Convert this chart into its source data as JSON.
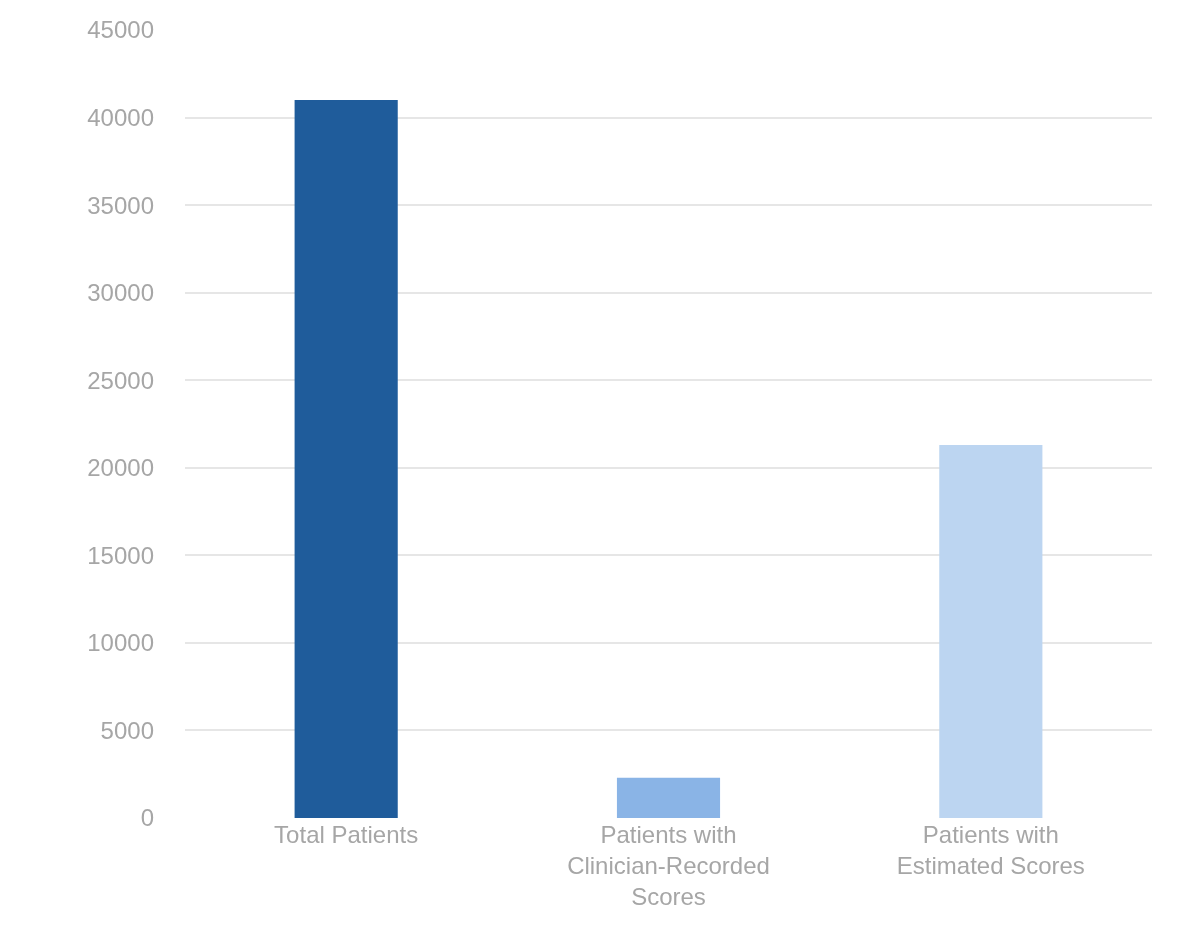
{
  "chart_data": {
    "type": "bar",
    "categories": [
      "Total Patients",
      "Patients with Clinician-Recorded Scores",
      "Patients with Estimated Scores"
    ],
    "values": [
      41000,
      2300,
      21300
    ],
    "colors": [
      "#1f5c9b",
      "#8ab4e6",
      "#bcd5f1"
    ],
    "ylim": [
      0,
      45000
    ],
    "yticks": [
      0,
      5000,
      10000,
      15000,
      20000,
      25000,
      30000,
      35000,
      40000,
      45000
    ],
    "grid": "y"
  }
}
